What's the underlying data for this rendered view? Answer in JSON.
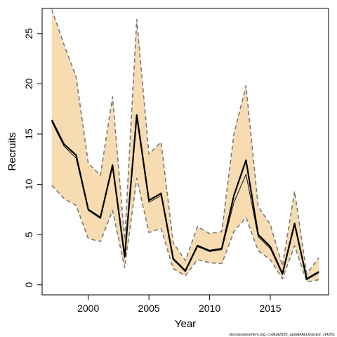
{
  "chart_data": {
    "type": "line",
    "xlabel": "Year",
    "ylabel": "Recruits",
    "xlim": [
      1996.2,
      2019.8
    ],
    "ylim": [
      -1.0,
      27.5
    ],
    "x_ticks": [
      2000,
      2005,
      2010,
      2015
    ],
    "y_ticks": [
      0,
      5,
      10,
      15,
      20,
      25
    ],
    "grid": false,
    "x": [
      1997,
      1998,
      1999,
      2000,
      2001,
      2002,
      2003,
      2004,
      2005,
      2006,
      2007,
      2008,
      2009,
      2010,
      2011,
      2012,
      2013,
      2014,
      2015,
      2016,
      2017,
      2018,
      2019
    ],
    "series": [
      {
        "role": "estimate",
        "values": [
          16.4,
          14.0,
          12.9,
          7.5,
          6.7,
          11.9,
          2.8,
          16.9,
          8.4,
          9.1,
          2.6,
          1.4,
          3.9,
          3.4,
          3.6,
          8.9,
          12.4,
          5.0,
          3.8,
          1.1,
          6.1,
          0.6,
          1.3
        ]
      },
      {
        "role": "median",
        "values": [
          16.2,
          13.8,
          12.6,
          7.4,
          6.6,
          11.7,
          2.7,
          16.6,
          8.2,
          8.9,
          2.5,
          1.3,
          3.8,
          3.3,
          3.5,
          8.2,
          11.0,
          4.8,
          3.6,
          1.0,
          5.9,
          0.5,
          1.2
        ]
      },
      {
        "role": "upper",
        "values": [
          27.4,
          23.9,
          20.7,
          12.1,
          10.9,
          18.7,
          4.5,
          26.4,
          13.0,
          14.2,
          4.2,
          2.4,
          5.8,
          5.1,
          5.3,
          15.0,
          19.8,
          7.8,
          6.0,
          1.9,
          9.3,
          1.1,
          2.7
        ]
      },
      {
        "role": "lower",
        "values": [
          9.9,
          8.6,
          7.9,
          4.6,
          4.3,
          7.4,
          1.7,
          10.6,
          5.2,
          5.6,
          1.6,
          0.9,
          2.5,
          2.2,
          2.1,
          5.3,
          6.7,
          3.4,
          2.5,
          0.6,
          3.9,
          0.3,
          0.5
        ]
      }
    ],
    "colors": {
      "band": "#f6dcb0",
      "estimate": "#000000",
      "median": "#111111",
      "bounds": "#7a7a7a",
      "axis": "#000000"
    },
    "footnote": "stockassessment.org, codkat2020_updateALLinputs2, r14261"
  }
}
